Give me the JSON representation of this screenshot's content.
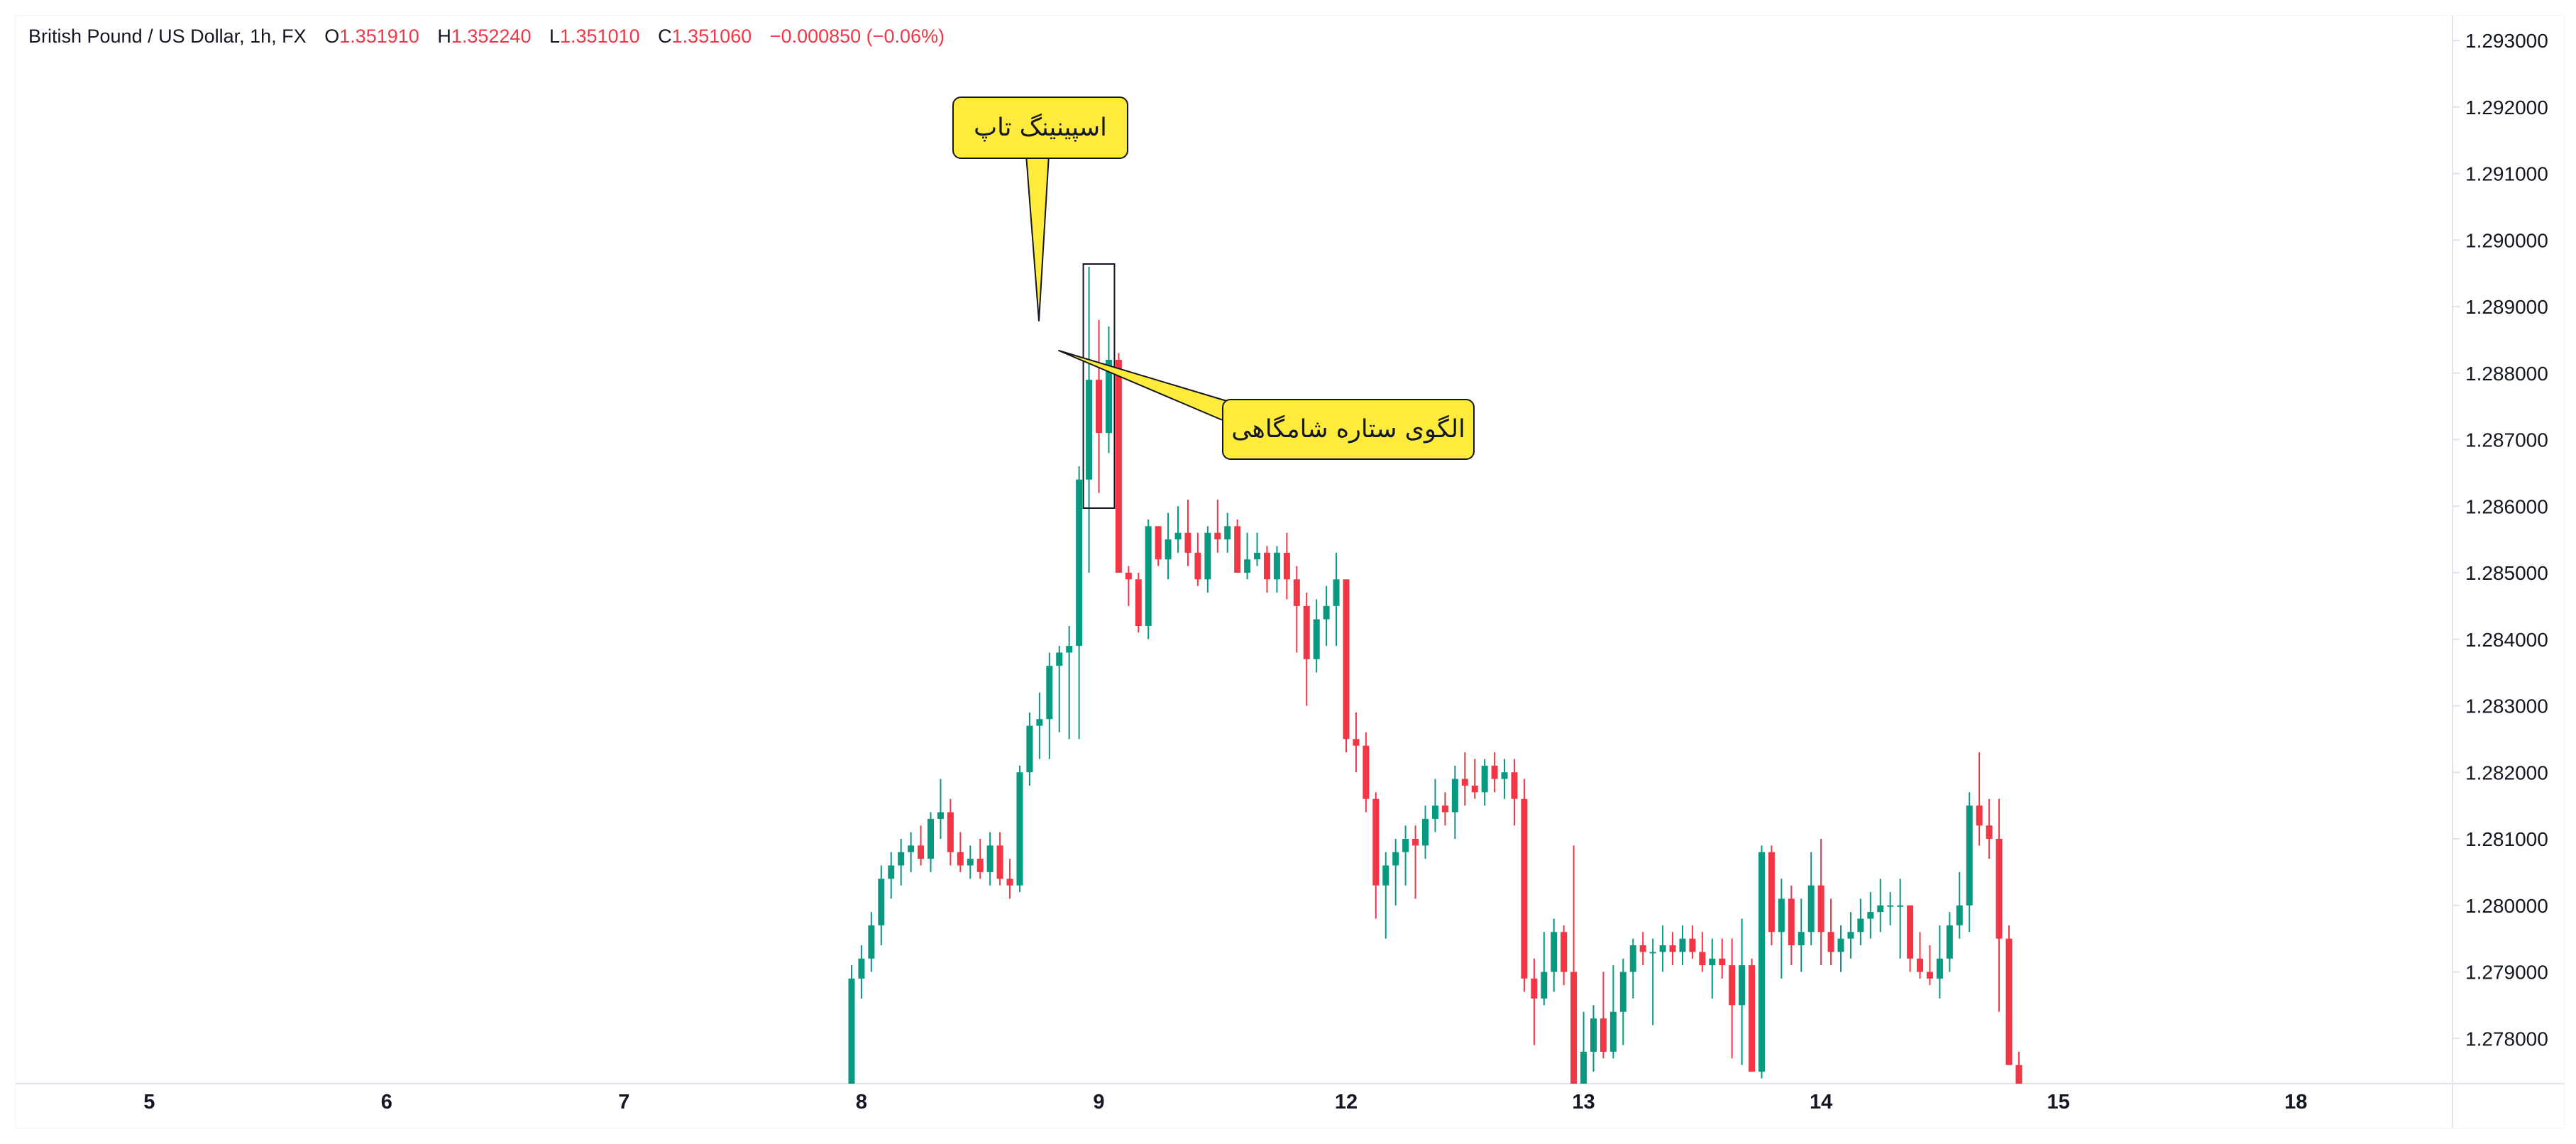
{
  "header": {
    "symbol": "British Pound / US Dollar, 1h, FX",
    "open_label": "O",
    "open": "1.351910",
    "high_label": "H",
    "high": "1.352240",
    "low_label": "L",
    "low": "1.351010",
    "close_label": "C",
    "close": "1.351060",
    "change": "−0.000850 (−0.06%)"
  },
  "annotations": {
    "spinning_top": "اسپینینگ تاپ",
    "shooting_star": "الگوی ستاره شامگاهی"
  },
  "colors": {
    "up": "#089981",
    "down": "#f23645",
    "callout": "#ffeb3b",
    "text": "#131722",
    "axis": "#e0e3eb"
  },
  "chart_data": {
    "type": "candlestick",
    "y_axis": {
      "position": "right",
      "range": [
        1.2772,
        1.2933
      ],
      "ticks": [
        "1.293000",
        "1.292000",
        "1.291000",
        "1.290000",
        "1.289000",
        "1.288000",
        "1.287000",
        "1.286000",
        "1.285000",
        "1.284000",
        "1.283000",
        "1.282000",
        "1.281000",
        "1.280000",
        "1.279000",
        "1.278000"
      ]
    },
    "x_axis": {
      "ticks": [
        {
          "label": "5",
          "bar": -96
        },
        {
          "label": "6",
          "bar": -72
        },
        {
          "label": "7",
          "bar": -48
        },
        {
          "label": "8",
          "bar": -24
        },
        {
          "label": "9",
          "bar": 0
        },
        {
          "label": "12",
          "bar": 25
        },
        {
          "label": "13",
          "bar": 49
        },
        {
          "label": "14",
          "bar": 73
        },
        {
          "label": "15",
          "bar": 97
        },
        {
          "label": "18",
          "bar": 121
        }
      ]
    },
    "candles_ohlc": [
      [
        1.2772,
        1.2791,
        1.2772,
        1.2789
      ],
      [
        1.2789,
        1.2794,
        1.2786,
        1.2792
      ],
      [
        1.2792,
        1.2799,
        1.279,
        1.2797
      ],
      [
        1.2797,
        1.2806,
        1.2794,
        1.2804
      ],
      [
        1.2804,
        1.2808,
        1.2801,
        1.2806
      ],
      [
        1.2806,
        1.281,
        1.2803,
        1.2808
      ],
      [
        1.2808,
        1.2811,
        1.2805,
        1.2809
      ],
      [
        1.2809,
        1.2812,
        1.2806,
        1.2807
      ],
      [
        1.2807,
        1.2814,
        1.2805,
        1.2813
      ],
      [
        1.2813,
        1.2819,
        1.281,
        1.2814
      ],
      [
        1.2814,
        1.2816,
        1.2806,
        1.2808
      ],
      [
        1.2808,
        1.2811,
        1.2805,
        1.2806
      ],
      [
        1.2806,
        1.2809,
        1.2804,
        1.2807
      ],
      [
        1.2807,
        1.281,
        1.2804,
        1.2805
      ],
      [
        1.2805,
        1.2811,
        1.2803,
        1.2809
      ],
      [
        1.2809,
        1.2811,
        1.2803,
        1.2804
      ],
      [
        1.2804,
        1.2807,
        1.2801,
        1.2803
      ],
      [
        1.2803,
        1.2821,
        1.2802,
        1.282
      ],
      [
        1.282,
        1.2829,
        1.2818,
        1.2827
      ],
      [
        1.2827,
        1.2832,
        1.2822,
        1.2828
      ],
      [
        1.2828,
        1.2838,
        1.2822,
        1.2836
      ],
      [
        1.2836,
        1.2839,
        1.2826,
        1.2838
      ],
      [
        1.2838,
        1.2842,
        1.2825,
        1.2839
      ],
      [
        1.2839,
        1.2866,
        1.2825,
        1.2864
      ],
      [
        1.2864,
        1.2896,
        1.285,
        1.2879
      ],
      [
        1.2879,
        1.2888,
        1.2862,
        1.2871
      ],
      [
        1.2871,
        1.2887,
        1.2868,
        1.2882
      ],
      [
        1.2882,
        1.2883,
        1.2856,
        1.285
      ],
      [
        1.285,
        1.2851,
        1.2845,
        1.2849
      ],
      [
        1.2849,
        1.285,
        1.2841,
        1.2842
      ],
      [
        1.2842,
        1.2858,
        1.284,
        1.2857
      ],
      [
        1.2857,
        1.2857,
        1.2851,
        1.2852
      ],
      [
        1.2852,
        1.2859,
        1.2849,
        1.2855
      ],
      [
        1.2855,
        1.286,
        1.2853,
        1.2856
      ],
      [
        1.2856,
        1.2861,
        1.2851,
        1.2853
      ],
      [
        1.2853,
        1.2856,
        1.2848,
        1.2849
      ],
      [
        1.2849,
        1.2857,
        1.2847,
        1.2856
      ],
      [
        1.2856,
        1.2861,
        1.2853,
        1.2855
      ],
      [
        1.2855,
        1.2859,
        1.2853,
        1.2857
      ],
      [
        1.2857,
        1.2858,
        1.285,
        1.285
      ],
      [
        1.285,
        1.2856,
        1.2849,
        1.2852
      ],
      [
        1.2852,
        1.2856,
        1.2851,
        1.2853
      ],
      [
        1.2853,
        1.2854,
        1.2847,
        1.2849
      ],
      [
        1.2849,
        1.2854,
        1.2847,
        1.2853
      ],
      [
        1.2853,
        1.2856,
        1.2846,
        1.2849
      ],
      [
        1.2849,
        1.2851,
        1.2838,
        1.2845
      ],
      [
        1.2845,
        1.2847,
        1.283,
        1.2837
      ],
      [
        1.2837,
        1.2846,
        1.2835,
        1.2843
      ],
      [
        1.2843,
        1.2848,
        1.2839,
        1.2845
      ],
      [
        1.2845,
        1.2853,
        1.2839,
        1.2849
      ],
      [
        1.2849,
        1.2849,
        1.2823,
        1.2825
      ],
      [
        1.2825,
        1.2829,
        1.282,
        1.2824
      ],
      [
        1.2824,
        1.2826,
        1.2814,
        1.2816
      ],
      [
        1.2816,
        1.2817,
        1.2798,
        1.2803
      ],
      [
        1.2803,
        1.2808,
        1.2795,
        1.2806
      ],
      [
        1.2806,
        1.281,
        1.28,
        1.2808
      ],
      [
        1.2808,
        1.2812,
        1.2803,
        1.281
      ],
      [
        1.281,
        1.2812,
        1.2801,
        1.2809
      ],
      [
        1.2809,
        1.2815,
        1.2807,
        1.2813
      ],
      [
        1.2813,
        1.2819,
        1.2811,
        1.2815
      ],
      [
        1.2815,
        1.2817,
        1.2812,
        1.2814
      ],
      [
        1.2814,
        1.2821,
        1.281,
        1.2819
      ],
      [
        1.2819,
        1.2823,
        1.2815,
        1.2818
      ],
      [
        1.2818,
        1.2822,
        1.2816,
        1.2817
      ],
      [
        1.2817,
        1.2822,
        1.2815,
        1.2821
      ],
      [
        1.2821,
        1.2823,
        1.2817,
        1.2819
      ],
      [
        1.2819,
        1.2822,
        1.2816,
        1.282
      ],
      [
        1.282,
        1.2822,
        1.2812,
        1.2816
      ],
      [
        1.2816,
        1.2819,
        1.2787,
        1.2789
      ],
      [
        1.2789,
        1.2792,
        1.2779,
        1.2786
      ],
      [
        1.2786,
        1.2796,
        1.2785,
        1.279
      ],
      [
        1.279,
        1.2798,
        1.2787,
        1.2796
      ],
      [
        1.2796,
        1.2797,
        1.2788,
        1.279
      ],
      [
        1.279,
        1.2809,
        1.2772,
        1.2772
      ],
      [
        1.2772,
        1.2784,
        1.2772,
        1.2778
      ],
      [
        1.2778,
        1.2785,
        1.2775,
        1.2783
      ],
      [
        1.2783,
        1.279,
        1.2777,
        1.2778
      ],
      [
        1.2778,
        1.2791,
        1.2777,
        1.2784
      ],
      [
        1.2784,
        1.2792,
        1.2779,
        1.279
      ],
      [
        1.279,
        1.2795,
        1.2786,
        1.2794
      ],
      [
        1.2794,
        1.2796,
        1.2791,
        1.2793
      ],
      [
        1.2793,
        1.2795,
        1.2782,
        1.2793
      ],
      [
        1.2793,
        1.2797,
        1.279,
        1.2794
      ],
      [
        1.2794,
        1.2796,
        1.2791,
        1.2793
      ],
      [
        1.2793,
        1.2797,
        1.2791,
        1.2795
      ],
      [
        1.2795,
        1.2797,
        1.2792,
        1.2793
      ],
      [
        1.2793,
        1.2796,
        1.279,
        1.2791
      ],
      [
        1.2791,
        1.2795,
        1.2786,
        1.2792
      ],
      [
        1.2792,
        1.2795,
        1.2789,
        1.2791
      ],
      [
        1.2791,
        1.2795,
        1.2777,
        1.2785
      ],
      [
        1.2785,
        1.2798,
        1.2776,
        1.2791
      ],
      [
        1.2791,
        1.2792,
        1.2777,
        1.2775
      ],
      [
        1.2775,
        1.2809,
        1.2774,
        1.2808
      ],
      [
        1.2808,
        1.2809,
        1.2794,
        1.2796
      ],
      [
        1.2796,
        1.2804,
        1.2789,
        1.2801
      ],
      [
        1.2801,
        1.2803,
        1.2791,
        1.2794
      ],
      [
        1.2794,
        1.2801,
        1.279,
        1.2796
      ],
      [
        1.2796,
        1.2808,
        1.2794,
        1.2803
      ],
      [
        1.2803,
        1.281,
        1.2791,
        1.2796
      ],
      [
        1.2796,
        1.2801,
        1.2791,
        1.2793
      ],
      [
        1.2793,
        1.2797,
        1.279,
        1.2795
      ],
      [
        1.2795,
        1.2799,
        1.2792,
        1.2796
      ],
      [
        1.2796,
        1.2801,
        1.2794,
        1.2798
      ],
      [
        1.2798,
        1.2802,
        1.2795,
        1.2799
      ],
      [
        1.2799,
        1.2804,
        1.2796,
        1.28
      ],
      [
        1.28,
        1.2802,
        1.2797,
        1.28
      ],
      [
        1.28,
        1.2804,
        1.2792,
        1.28
      ],
      [
        1.28,
        1.28,
        1.279,
        1.2792
      ],
      [
        1.2792,
        1.2796,
        1.2789,
        1.279
      ],
      [
        1.279,
        1.2794,
        1.2788,
        1.2789
      ],
      [
        1.2789,
        1.2797,
        1.2786,
        1.2792
      ],
      [
        1.2792,
        1.2799,
        1.279,
        1.2797
      ],
      [
        1.2797,
        1.2805,
        1.2795,
        1.28
      ],
      [
        1.28,
        1.2817,
        1.2796,
        1.2815
      ],
      [
        1.2815,
        1.2823,
        1.2809,
        1.2812
      ],
      [
        1.2812,
        1.2816,
        1.2807,
        1.281
      ],
      [
        1.281,
        1.2816,
        1.2784,
        1.2795
      ],
      [
        1.2795,
        1.2797,
        1.2776,
        1.2776
      ],
      [
        1.2776,
        1.2778,
        1.2772,
        1.2772
      ]
    ],
    "first_bar_index": -25
  }
}
